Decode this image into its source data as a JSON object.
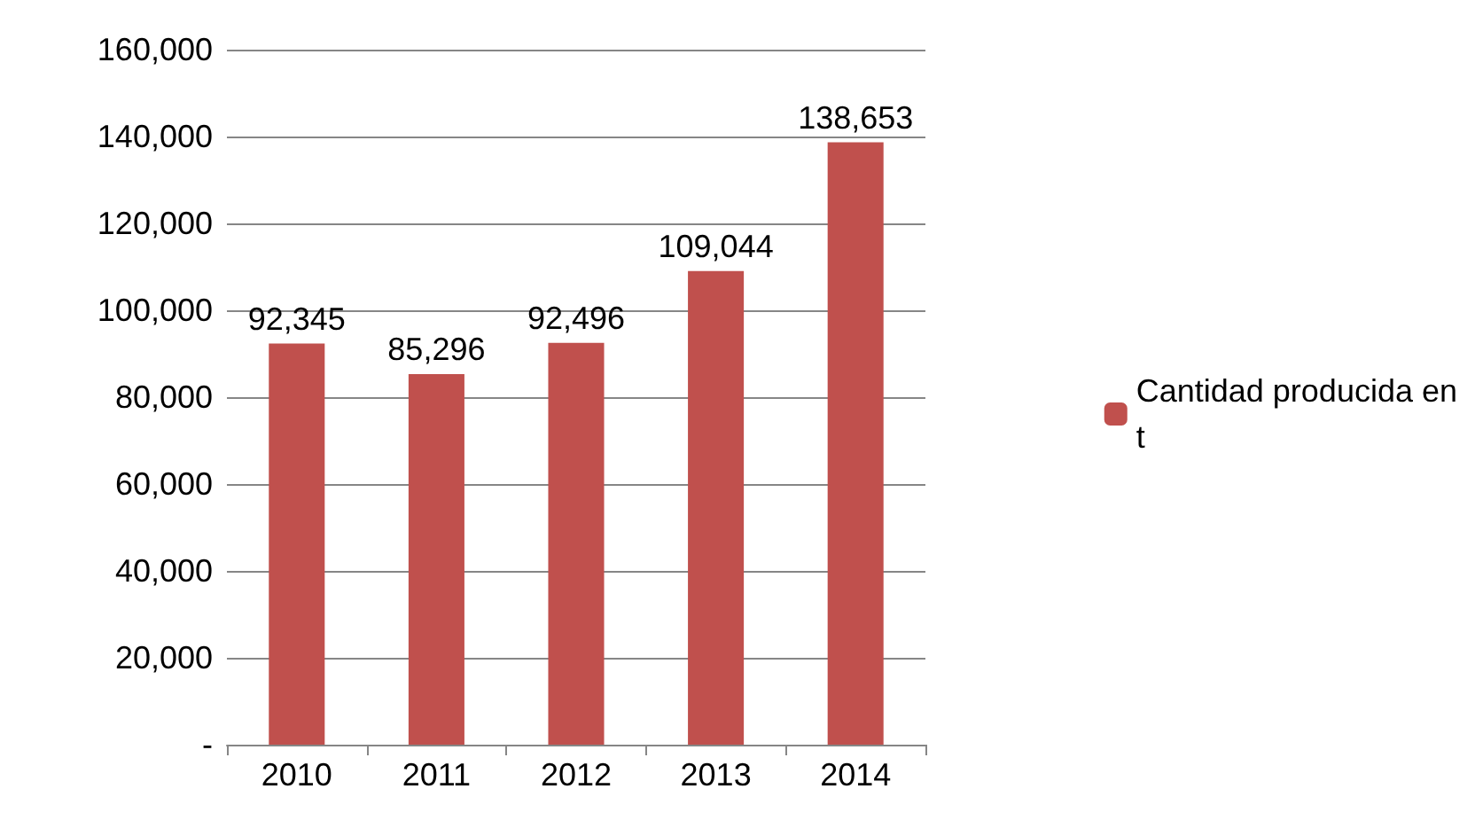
{
  "chart_data": {
    "type": "bar",
    "categories": [
      "2010",
      "2011",
      "2012",
      "2013",
      "2014"
    ],
    "series": [
      {
        "name": "Cantidad producida en t",
        "color": "#c0504d",
        "values": [
          92345,
          85296,
          92496,
          109044,
          138653
        ],
        "value_labels": [
          "92,345",
          "85,296",
          "92,496",
          "109,044",
          "138,653"
        ]
      }
    ],
    "ylim": [
      0,
      160000
    ],
    "yticks": [
      {
        "value": 0,
        "label": "-"
      },
      {
        "value": 20000,
        "label": "20,000"
      },
      {
        "value": 40000,
        "label": "40,000"
      },
      {
        "value": 60000,
        "label": "60,000"
      },
      {
        "value": 80000,
        "label": "80,000"
      },
      {
        "value": 100000,
        "label": "100,000"
      },
      {
        "value": 120000,
        "label": "120,000"
      },
      {
        "value": 140000,
        "label": "140,000"
      },
      {
        "value": 160000,
        "label": "160,000"
      }
    ],
    "grid": "y",
    "legend": "right"
  }
}
